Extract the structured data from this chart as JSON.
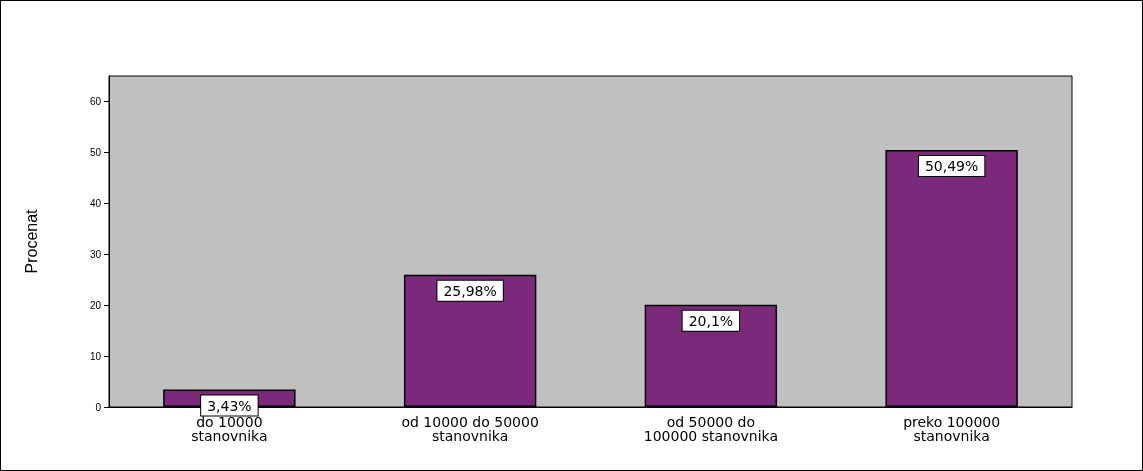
{
  "chart_data": {
    "type": "bar",
    "ylabel": "Procenat",
    "categories": [
      "do 10000\nstanovnika",
      "od 10000 do 50000\nstanovnika",
      "od 50000 do\n100000 stanovnika",
      "preko 100000\nstanovnika"
    ],
    "values": [
      3.43,
      25.98,
      20.1,
      50.49
    ],
    "value_labels": [
      "3,43%",
      "25,98%",
      "20,1%",
      "50,49%"
    ],
    "color": "#7b2a7b",
    "ylim": [
      0,
      65
    ],
    "yticks": [
      0,
      10,
      20,
      30,
      40,
      50,
      60
    ],
    "grid": false
  }
}
